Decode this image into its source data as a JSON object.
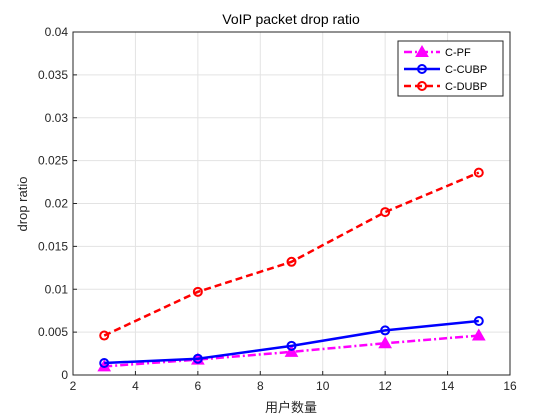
{
  "chart_data": {
    "type": "line",
    "title": "VoIP packet drop ratio",
    "xlabel": "用户数量",
    "ylabel": "drop ratio",
    "xlim": [
      2,
      16
    ],
    "ylim": [
      0,
      0.04
    ],
    "xticks": [
      2,
      4,
      6,
      8,
      10,
      12,
      14,
      16
    ],
    "yticks": [
      0,
      0.005,
      0.01,
      0.015,
      0.02,
      0.025,
      0.03,
      0.035,
      0.04
    ],
    "xtick_labels": [
      "2",
      "4",
      "6",
      "8",
      "10",
      "12",
      "14",
      "16"
    ],
    "ytick_labels": [
      "0",
      "0.005",
      "0.01",
      "0.015",
      "0.02",
      "0.025",
      "0.03",
      "0.035",
      "0.04"
    ],
    "grid": true,
    "legend_position": "top-right",
    "x": [
      3,
      6,
      9,
      12,
      15
    ],
    "series": [
      {
        "name": "C-PF",
        "values": [
          0.001,
          0.0018,
          0.0027,
          0.0037,
          0.0046
        ],
        "color": "#ff00ff",
        "line_style": "dash-dot",
        "marker": "triangle"
      },
      {
        "name": "C-CUBP",
        "values": [
          0.0014,
          0.0019,
          0.0034,
          0.0052,
          0.0063
        ],
        "color": "#0000ff",
        "line_style": "solid",
        "marker": "circle"
      },
      {
        "name": "C-DUBP",
        "values": [
          0.0046,
          0.0097,
          0.0132,
          0.019,
          0.0236
        ],
        "color": "#ff0000",
        "line_style": "dashed",
        "marker": "circle"
      }
    ]
  }
}
